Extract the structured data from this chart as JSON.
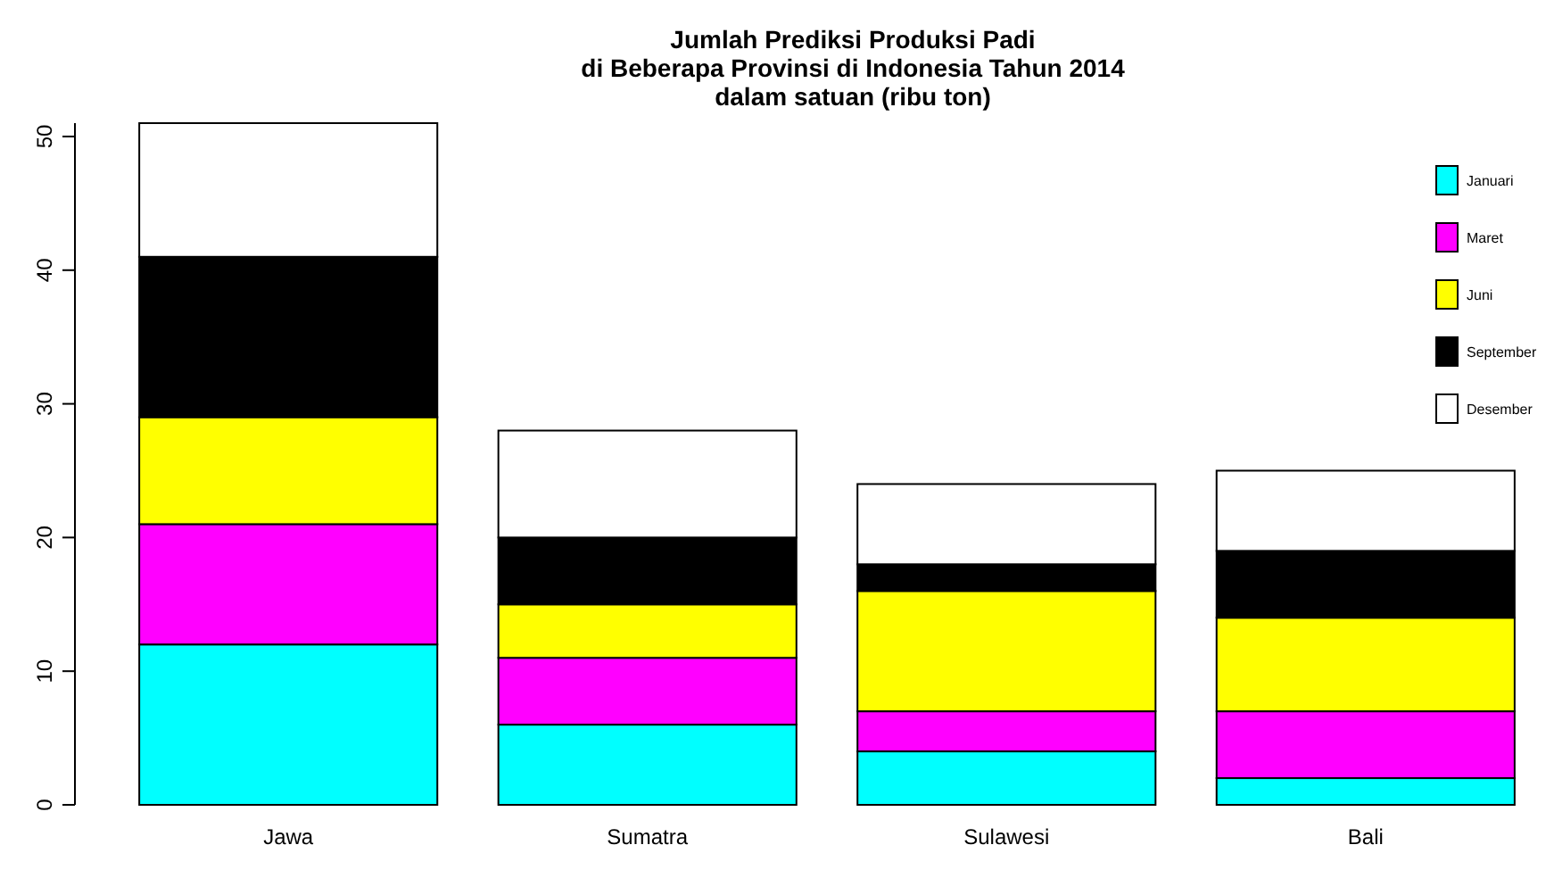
{
  "chart_data": {
    "type": "bar",
    "title": "Jumlah Prediksi Produksi Padi\ndi Beberapa Provinsi di Indonesia Tahun 2014\ndalam satuan (ribu ton)",
    "categories": [
      "Jawa",
      "Sumatra",
      "Sulawesi",
      "Bali"
    ],
    "stacked": true,
    "ylim": [
      0,
      51
    ],
    "yticks": [
      0,
      10,
      20,
      30,
      40,
      50
    ],
    "legend": "top right",
    "grid": false,
    "series": [
      {
        "name": "Januari",
        "color": "#00ffff",
        "values": [
          12,
          6,
          4,
          2
        ]
      },
      {
        "name": "Maret",
        "color": "#ff00ff",
        "values": [
          9,
          5,
          3,
          5
        ]
      },
      {
        "name": "Juni",
        "color": "#ffff00",
        "values": [
          8,
          4,
          9,
          7
        ]
      },
      {
        "name": "September",
        "color": "#000000",
        "values": [
          12,
          5,
          2,
          5
        ]
      },
      {
        "name": "Desember",
        "color": "#ffffff",
        "values": [
          10,
          8,
          6,
          6
        ]
      }
    ]
  }
}
